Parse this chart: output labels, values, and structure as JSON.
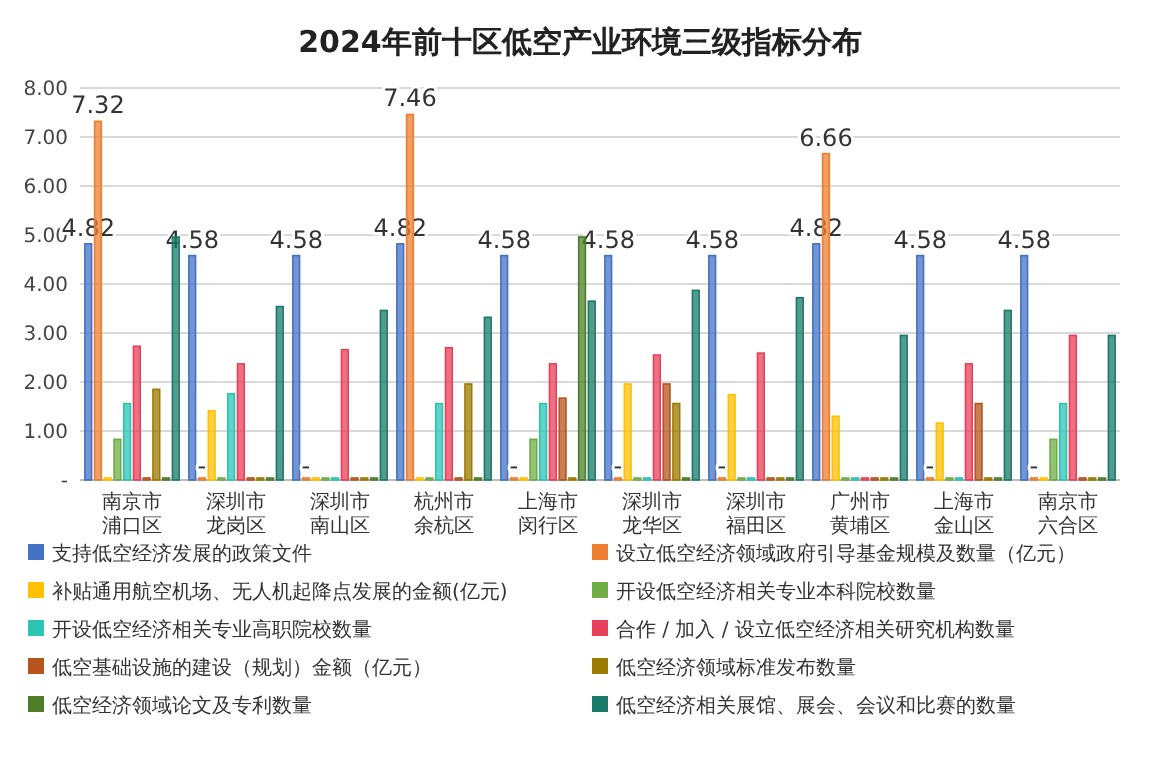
{
  "chart_data": {
    "type": "bar",
    "title": "2024年前十区低空产业环境三级指标分布",
    "categories": [
      "南京市浦口区",
      "深圳市龙岗区",
      "深圳市南山区",
      "杭州市余杭区",
      "上海市闵行区",
      "深圳市龙华区",
      "深圳市福田区",
      "广州市黄埔区",
      "上海市金山区",
      "南京市六合区"
    ],
    "series": [
      {
        "name": "支持低空经济发展的政策文件",
        "color": "#4472c4",
        "values": [
          4.82,
          4.58,
          4.58,
          4.82,
          4.58,
          4.58,
          4.58,
          4.82,
          4.58,
          4.58
        ],
        "value_labels": [
          "4.82",
          "4.58",
          "4.58",
          "4.82",
          "4.58",
          "4.58",
          "4.58",
          "4.82",
          "4.58",
          "4.58"
        ]
      },
      {
        "name": "设立低空经济领域政府引导基金规模及数量（亿元）",
        "color": "#ed7d31",
        "values": [
          7.32,
          0,
          0,
          7.46,
          0,
          0,
          0,
          6.66,
          0,
          0
        ],
        "value_labels": [
          "7.32",
          "-",
          "-",
          "7.46",
          "-",
          "-",
          "-",
          "6.66",
          "-",
          "-"
        ]
      },
      {
        "name": "补贴通用航空机场、无人机起降点发展的金额(亿元)",
        "color": "#ffc000",
        "values": [
          0,
          1.41,
          0,
          0,
          0,
          1.96,
          1.74,
          1.3,
          1.16,
          0
        ]
      },
      {
        "name": "开设低空经济相关专业本科院校数量",
        "color": "#70ad47",
        "values": [
          0.83,
          0,
          0,
          0,
          0.83,
          0,
          0,
          0,
          0,
          0.83
        ]
      },
      {
        "name": "开设低空经济相关专业高职院校数量",
        "color": "#2ec4b4",
        "values": [
          1.56,
          1.76,
          0,
          1.56,
          1.56,
          0,
          0,
          0,
          0,
          1.56
        ]
      },
      {
        "name": "合作 / 加入 / 设立低空经济相关研究机构数量",
        "color": "#e8405a",
        "values": [
          2.73,
          2.37,
          2.66,
          2.7,
          2.37,
          2.55,
          2.59,
          0,
          2.37,
          2.95
        ]
      },
      {
        "name": "低空基础设施的建设（规划）金额（亿元）",
        "color": "#b5541c",
        "values": [
          0,
          0,
          0,
          0,
          1.67,
          1.96,
          0,
          0,
          1.56,
          0
        ]
      },
      {
        "name": "低空经济领域标准发布数量",
        "color": "#9c7a00",
        "values": [
          1.85,
          0,
          0,
          1.96,
          0,
          1.56,
          0,
          0,
          0,
          0
        ]
      },
      {
        "name": "低空经济领域论文及专利数量",
        "color": "#4e7d2a",
        "values": [
          0,
          0,
          0,
          0,
          4.96,
          0,
          0,
          0,
          0,
          0
        ]
      },
      {
        "name": "低空经济相关展馆、展会、会议和比赛的数量",
        "color": "#1a7a6a",
        "values": [
          4.96,
          3.54,
          3.46,
          3.32,
          3.65,
          3.87,
          3.72,
          2.95,
          3.46,
          2.95
        ]
      }
    ],
    "ylim": [
      0,
      8
    ],
    "yticks": [
      {
        "value": 0,
        "label": "-"
      },
      {
        "value": 1,
        "label": "1.00"
      },
      {
        "value": 2,
        "label": "2.00"
      },
      {
        "value": 3,
        "label": "3.00"
      },
      {
        "value": 4,
        "label": "4.00"
      },
      {
        "value": 5,
        "label": "5.00"
      },
      {
        "value": 6,
        "label": "6.00"
      },
      {
        "value": 7,
        "label": "7.00"
      },
      {
        "value": 8,
        "label": "8.00"
      }
    ],
    "grid": "y",
    "legend": "bottom"
  }
}
